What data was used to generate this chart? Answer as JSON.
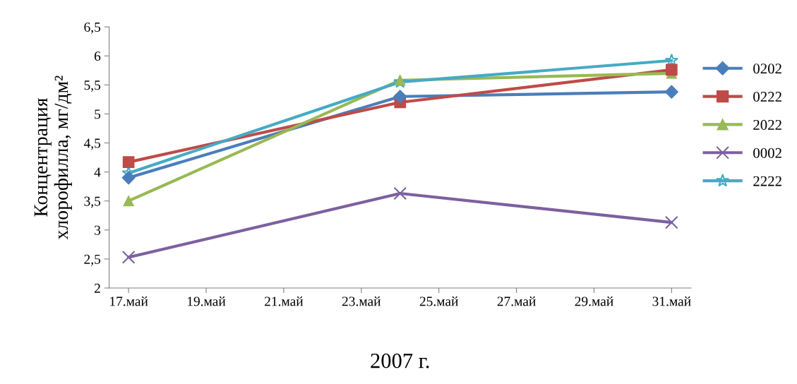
{
  "chart_data": {
    "type": "line",
    "xlabel": "2007 г.",
    "ylabel": "Концентрация\nхлорофилла, мг/дм²",
    "x": [
      "2007-05-17",
      "2007-05-24",
      "2007-05-31"
    ],
    "series": [
      {
        "name": "0202",
        "color": "#4a7ebb",
        "marker": "diamond",
        "values": [
          3.9,
          5.3,
          5.38
        ]
      },
      {
        "name": "0222",
        "color": "#be4b48",
        "marker": "square",
        "values": [
          4.17,
          5.2,
          5.76
        ]
      },
      {
        "name": "2022",
        "color": "#98b954",
        "marker": "triangle",
        "values": [
          3.5,
          5.58,
          5.7
        ]
      },
      {
        "name": "0002",
        "color": "#7d60a0",
        "marker": "cross",
        "values": [
          2.53,
          3.63,
          3.13
        ]
      },
      {
        "name": "2222",
        "color": "#46aac5",
        "marker": "star",
        "values": [
          3.98,
          5.55,
          5.92
        ]
      }
    ],
    "xlim": [
      "2007-05-16T12:00",
      "2007-05-31T12:00"
    ],
    "xticks": [
      {
        "value": "2007-05-17",
        "label": "17.май"
      },
      {
        "value": "2007-05-19",
        "label": "19.май"
      },
      {
        "value": "2007-05-21",
        "label": "21.май"
      },
      {
        "value": "2007-05-23",
        "label": "23.май"
      },
      {
        "value": "2007-05-25",
        "label": "25.май"
      },
      {
        "value": "2007-05-27",
        "label": "27.май"
      },
      {
        "value": "2007-05-29",
        "label": "29.май"
      },
      {
        "value": "2007-05-31",
        "label": "31.май"
      }
    ],
    "ylim": [
      2,
      6.5
    ],
    "yticks": [
      2,
      {
        "value": 2.5,
        "label": "2,5"
      },
      3,
      {
        "value": 3.5,
        "label": "3,5"
      },
      4,
      {
        "value": 4.5,
        "label": "4,5"
      },
      5,
      {
        "value": 5.5,
        "label": "5,5"
      },
      6,
      {
        "value": 6.5,
        "label": "6,5"
      }
    ],
    "grid": false,
    "legend": "right",
    "line_style": "solid"
  }
}
